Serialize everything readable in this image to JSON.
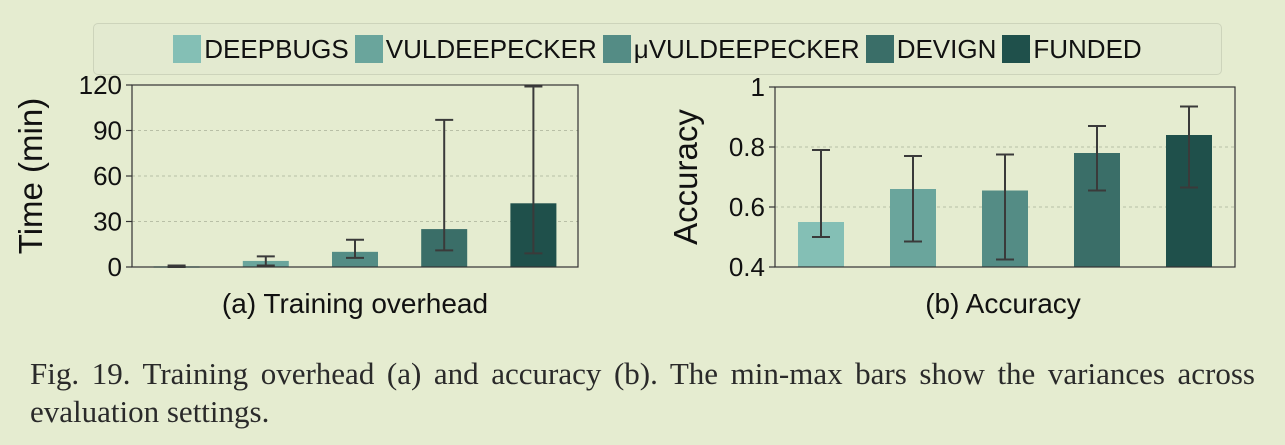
{
  "legend": {
    "items": [
      {
        "label": "DEEPBUGS",
        "color": "#84bfb5"
      },
      {
        "label": "VULDEEPECKER",
        "color": "#6aa59c"
      },
      {
        "label": "μVULDEEPECKER",
        "color": "#548c85"
      },
      {
        "label": "DEVIGN",
        "color": "#3a6e68"
      },
      {
        "label": "FUNDED",
        "color": "#1f504b"
      }
    ]
  },
  "chart_data": [
    {
      "type": "bar",
      "subtitle": "(a)  Training overhead",
      "ylabel": "Time (min)",
      "xlabel": "",
      "ylim": [
        0,
        120
      ],
      "yticks": [
        "0",
        "30",
        "60",
        "90",
        "120"
      ],
      "categories": [
        "DEEPBUGS",
        "VULDEEPECKER",
        "μVULDEEPECKER",
        "DEVIGN",
        "FUNDED"
      ],
      "values": [
        0.5,
        4,
        10,
        25,
        42
      ],
      "error_min": [
        0,
        1,
        6,
        11,
        9
      ],
      "error_max": [
        1,
        7,
        18,
        97,
        119
      ],
      "grid": true
    },
    {
      "type": "bar",
      "subtitle": "(b)  Accuracy",
      "ylabel": "Accuracy",
      "xlabel": "",
      "ylim": [
        0.4,
        1.0
      ],
      "yticks": [
        "0.4",
        "0.6",
        "0.8",
        "1"
      ],
      "categories": [
        "DEEPBUGS",
        "VULDEEPECKER",
        "μVULDEEPECKER",
        "DEVIGN",
        "FUNDED"
      ],
      "values": [
        0.55,
        0.66,
        0.655,
        0.78,
        0.84
      ],
      "error_min": [
        0.5,
        0.485,
        0.425,
        0.655,
        0.665
      ],
      "error_max": [
        0.79,
        0.77,
        0.775,
        0.87,
        0.935
      ],
      "grid": true
    }
  ],
  "caption": "Fig. 19.    Training overhead (a) and accuracy (b). The min-max bars show the variances across evaluation settings."
}
